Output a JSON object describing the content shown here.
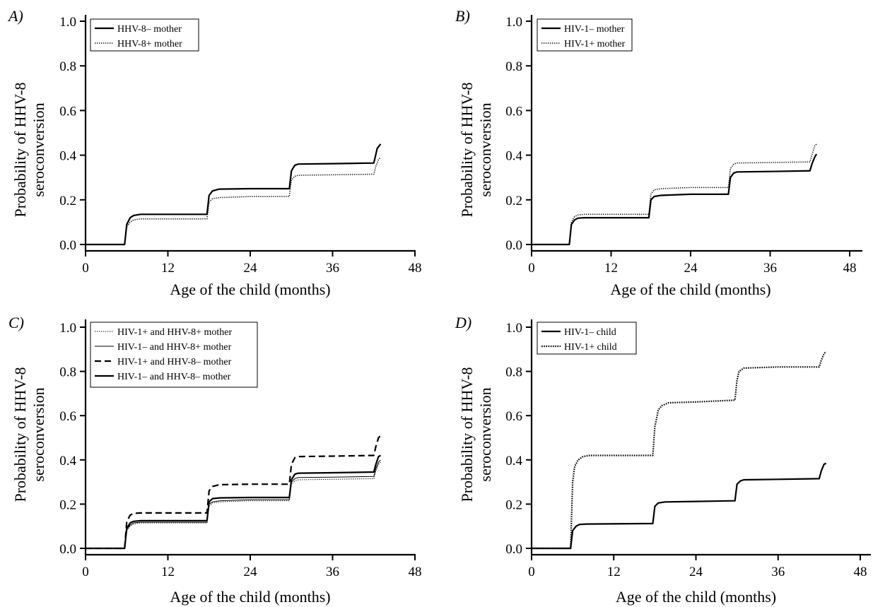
{
  "chart_data": [
    {
      "panel": "A)",
      "type": "line",
      "xlabel": "Age of the child (months)",
      "ylabel": [
        "Probability of HHV-8",
        "seroconversion"
      ],
      "xlim": [
        0,
        48
      ],
      "ylim": [
        0,
        1.0
      ],
      "xticks": [
        0,
        12,
        24,
        36,
        48
      ],
      "yticks": [
        "0.0",
        "0.2",
        "0.4",
        "0.6",
        "0.8",
        "1.0"
      ],
      "legend_position": "top-left",
      "series": [
        {
          "name": "HHV-8– mother",
          "style": "solid",
          "weight": "bold",
          "x": [
            0,
            5.7,
            6,
            6.5,
            7,
            8,
            17.7,
            18,
            18.5,
            19.5,
            24,
            29.7,
            30,
            30.5,
            31,
            36,
            42,
            42.2,
            42.5,
            43
          ],
          "y": [
            0,
            0,
            0.09,
            0.12,
            0.13,
            0.135,
            0.135,
            0.22,
            0.24,
            0.248,
            0.25,
            0.25,
            0.33,
            0.355,
            0.36,
            0.362,
            0.365,
            0.39,
            0.43,
            0.45
          ]
        },
        {
          "name": "HHV-8+ mother",
          "style": "dotted",
          "weight": "normal",
          "x": [
            0,
            5.7,
            6,
            6.5,
            7,
            8,
            17.7,
            18,
            18.5,
            19.5,
            24,
            29.7,
            30,
            30.5,
            31,
            36,
            42,
            42.3,
            42.7,
            43
          ],
          "y": [
            0,
            0,
            0.08,
            0.1,
            0.11,
            0.115,
            0.115,
            0.19,
            0.205,
            0.21,
            0.215,
            0.215,
            0.29,
            0.305,
            0.31,
            0.312,
            0.315,
            0.35,
            0.38,
            0.39
          ]
        }
      ]
    },
    {
      "panel": "B)",
      "type": "line",
      "xlabel": "Age of the child (months)",
      "ylabel": [
        "Probability of HHV-8",
        "seroconversion"
      ],
      "xlim": [
        0,
        48
      ],
      "ylim": [
        0,
        1.0
      ],
      "xticks": [
        0,
        12,
        24,
        36,
        48
      ],
      "yticks": [
        "0.0",
        "0.2",
        "0.4",
        "0.6",
        "0.8",
        "1.0"
      ],
      "legend_position": "top-left",
      "series": [
        {
          "name": "HIV-1– mother",
          "style": "solid",
          "weight": "bold",
          "x": [
            0,
            5.7,
            6,
            6.5,
            7,
            8,
            17.7,
            18,
            18.5,
            19.5,
            24,
            29.7,
            30,
            30.5,
            31,
            36,
            42,
            42.3,
            42.7,
            43
          ],
          "y": [
            0,
            0,
            0.09,
            0.11,
            0.118,
            0.12,
            0.12,
            0.2,
            0.215,
            0.22,
            0.225,
            0.225,
            0.3,
            0.32,
            0.325,
            0.327,
            0.33,
            0.36,
            0.39,
            0.405
          ]
        },
        {
          "name": "HIV-1+ mother",
          "style": "dotted",
          "weight": "normal",
          "x": [
            0,
            5.7,
            6,
            6.5,
            7,
            8,
            17.7,
            18,
            18.5,
            19.5,
            24,
            29.7,
            30,
            30.5,
            31,
            36,
            42,
            42.3,
            42.7,
            43
          ],
          "y": [
            0,
            0,
            0.1,
            0.125,
            0.132,
            0.135,
            0.135,
            0.225,
            0.245,
            0.25,
            0.255,
            0.255,
            0.34,
            0.36,
            0.365,
            0.367,
            0.37,
            0.4,
            0.44,
            0.45
          ]
        }
      ]
    },
    {
      "panel": "C)",
      "type": "line",
      "xlabel": "Age of the child (months)",
      "ylabel": [
        "Probability of HHV-8",
        "seroconversion"
      ],
      "xlim": [
        0,
        48
      ],
      "ylim": [
        0,
        1.0
      ],
      "xticks": [
        0,
        12,
        24,
        36,
        48
      ],
      "yticks": [
        "0.0",
        "0.2",
        "0.4",
        "0.6",
        "0.8",
        "1.0"
      ],
      "legend_position": "top-left",
      "series": [
        {
          "name": "HIV-1+ and HHV-8+ mother",
          "style": "dotted",
          "weight": "thin",
          "x": [
            0,
            5.7,
            6,
            6.5,
            7,
            8,
            17.7,
            18,
            18.5,
            19.5,
            24,
            29.7,
            30,
            30.5,
            31,
            36,
            42,
            42.3,
            42.7,
            43
          ],
          "y": [
            0,
            0,
            0.08,
            0.1,
            0.11,
            0.115,
            0.115,
            0.19,
            0.205,
            0.21,
            0.215,
            0.215,
            0.29,
            0.305,
            0.31,
            0.312,
            0.315,
            0.35,
            0.38,
            0.39
          ]
        },
        {
          "name": "HIV-1– and HHV-8+ mother",
          "style": "solid",
          "weight": "thin",
          "x": [
            0,
            5.7,
            6,
            6.5,
            7,
            8,
            17.7,
            18,
            18.5,
            19.5,
            24,
            29.7,
            30,
            30.5,
            31,
            36,
            42,
            42.3,
            42.7,
            43
          ],
          "y": [
            0,
            0,
            0.085,
            0.105,
            0.115,
            0.118,
            0.118,
            0.2,
            0.21,
            0.215,
            0.22,
            0.22,
            0.3,
            0.315,
            0.32,
            0.322,
            0.325,
            0.36,
            0.39,
            0.4
          ]
        },
        {
          "name": "HIV-1+ and HHV-8– mother",
          "style": "dashed",
          "weight": "bold",
          "x": [
            0,
            5.7,
            6,
            6.5,
            7,
            8,
            17.7,
            18,
            18.5,
            19.5,
            24,
            29.7,
            30,
            30.5,
            31,
            36,
            42,
            42.3,
            42.7,
            43
          ],
          "y": [
            0,
            0,
            0.12,
            0.15,
            0.158,
            0.16,
            0.16,
            0.26,
            0.28,
            0.288,
            0.29,
            0.29,
            0.38,
            0.41,
            0.415,
            0.417,
            0.42,
            0.46,
            0.5,
            0.51
          ]
        },
        {
          "name": "HIV-1– and HHV-8– mother",
          "style": "solid",
          "weight": "bold",
          "x": [
            0,
            5.7,
            6,
            6.5,
            7,
            8,
            17.7,
            18,
            18.5,
            19.5,
            24,
            29.7,
            30,
            30.5,
            31,
            36,
            42,
            42.3,
            42.7,
            43
          ],
          "y": [
            0,
            0,
            0.09,
            0.115,
            0.122,
            0.125,
            0.125,
            0.21,
            0.225,
            0.228,
            0.23,
            0.23,
            0.31,
            0.335,
            0.34,
            0.342,
            0.345,
            0.38,
            0.415,
            0.42
          ]
        }
      ]
    },
    {
      "panel": "D)",
      "type": "line",
      "xlabel": "Age of the child (months)",
      "ylabel": [
        "Probability of HHV-8",
        "seroconversion"
      ],
      "xlim": [
        0,
        48
      ],
      "ylim": [
        0,
        1.0
      ],
      "xticks": [
        0,
        12,
        24,
        36,
        48
      ],
      "yticks": [
        "0.0",
        "0.2",
        "0.4",
        "0.6",
        "0.8",
        "1.0"
      ],
      "legend_position": "top-left",
      "series": [
        {
          "name": "HIV-1– child",
          "style": "solid",
          "weight": "bold",
          "x": [
            0,
            5.7,
            6,
            6.5,
            7,
            8,
            17.7,
            18,
            18.5,
            19.5,
            24,
            29.7,
            30,
            30.5,
            31,
            36,
            42,
            42.3,
            42.7,
            43
          ],
          "y": [
            0,
            0,
            0.08,
            0.1,
            0.108,
            0.11,
            0.112,
            0.19,
            0.205,
            0.21,
            0.212,
            0.215,
            0.29,
            0.305,
            0.31,
            0.312,
            0.315,
            0.35,
            0.38,
            0.385
          ]
        },
        {
          "name": "HIV-1+ child",
          "style": "dotted",
          "weight": "bold",
          "x": [
            0,
            5.7,
            6,
            6.3,
            6.8,
            7.5,
            8.5,
            17.7,
            18,
            18.5,
            19,
            20,
            24,
            29.7,
            30,
            30.3,
            31,
            36,
            42,
            42.3,
            42.7,
            43
          ],
          "y": [
            0,
            0,
            0.3,
            0.37,
            0.4,
            0.415,
            0.42,
            0.42,
            0.55,
            0.625,
            0.645,
            0.658,
            0.662,
            0.67,
            0.76,
            0.8,
            0.815,
            0.82,
            0.82,
            0.85,
            0.88,
            0.89
          ]
        }
      ]
    }
  ]
}
